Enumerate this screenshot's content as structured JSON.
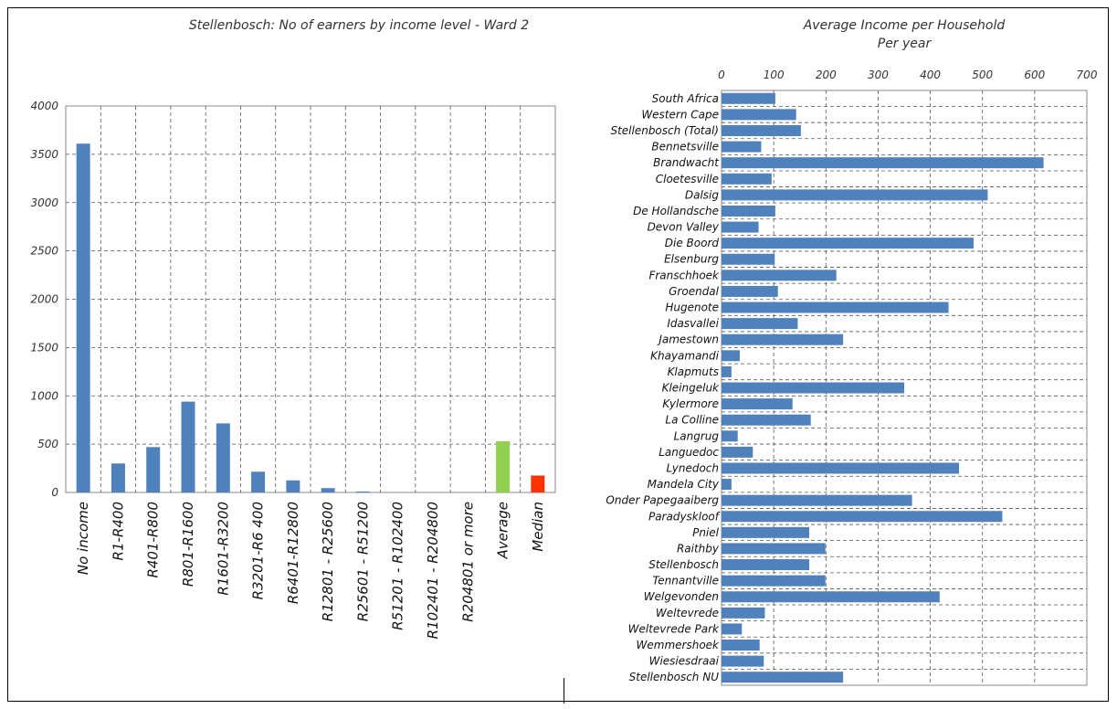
{
  "chart_data": [
    {
      "type": "bar",
      "title": "Stellenbosch:  No of earners by income level - Ward 2",
      "categories": [
        "No income",
        "R1-R400",
        "R401-R800",
        "R801-R1600",
        "R1601-R3200",
        "R3201-R6 400",
        "R6401-R12800",
        "R12801 - R25600",
        "R25601 - R51200",
        "R51201 - R102400",
        "R102401 - R204800",
        "R204801 or more",
        "Average",
        "Median"
      ],
      "values": [
        3610,
        300,
        470,
        940,
        715,
        215,
        125,
        45,
        10,
        0,
        0,
        0,
        530,
        175
      ],
      "bar_colors": [
        "#4f81bd",
        "#4f81bd",
        "#4f81bd",
        "#4f81bd",
        "#4f81bd",
        "#4f81bd",
        "#4f81bd",
        "#4f81bd",
        "#4f81bd",
        "#4f81bd",
        "#4f81bd",
        "#4f81bd",
        "#92d050",
        "#ff3300"
      ],
      "ylim": [
        0,
        4000
      ],
      "yticks": [
        "0",
        "500",
        "1000",
        "1500",
        "2000",
        "2500",
        "3000",
        "3500",
        "4000"
      ],
      "xlabel": "",
      "ylabel": "",
      "grid": true,
      "legend": "none"
    },
    {
      "type": "bar",
      "orientation": "horizontal",
      "title": "Average Income per Household",
      "subtitle": "Per year",
      "categories": [
        "South Africa",
        "Western Cape",
        "Stellenbosch (Total)",
        "Bennetsville",
        "Brandwacht",
        "Cloetesville",
        "Dalsig",
        "De Hollandsche",
        "Devon Valley",
        "Die Boord",
        "Elsenburg",
        "Franschhoek",
        "Groendal",
        "Hugenote",
        "Idasvallei",
        "Jamestown",
        "Khayamandi",
        "Klapmuts",
        "Kleingeluk",
        "Kylermore",
        "La Colline",
        "Langrug",
        "Languedoc",
        "Lynedoch",
        "Mandela City",
        "Onder Papegaaiberg",
        "Paradyskloof",
        "Pniel",
        "Raithby",
        "Stellenbosch",
        "Tennantville",
        "Welgevonden",
        "Weltevrede",
        "Weltevrede Park",
        "Wemmershoek",
        "Wiesiesdraai",
        "Stellenbosch NU"
      ],
      "values": [
        103,
        143,
        152,
        76,
        617,
        96,
        510,
        103,
        71,
        483,
        102,
        220,
        108,
        435,
        146,
        233,
        35,
        19,
        350,
        136,
        171,
        31,
        60,
        455,
        19,
        365,
        538,
        168,
        199,
        168,
        199,
        418,
        83,
        39,
        73,
        81,
        233
      ],
      "bar_color": "#4f81bd",
      "xlim": [
        0,
        700
      ],
      "xticks": [
        "0",
        "100",
        "200",
        "300",
        "400",
        "500",
        "600",
        "700"
      ],
      "xaxis_position": "top",
      "xlabel": "",
      "ylabel": "",
      "grid": true,
      "legend": "none"
    }
  ]
}
